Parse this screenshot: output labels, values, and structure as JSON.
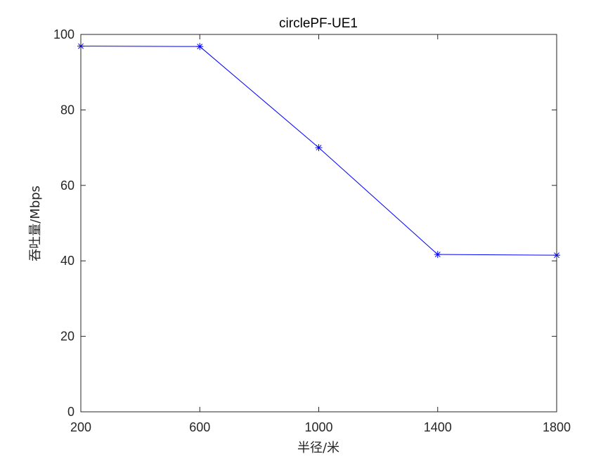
{
  "chart_data": {
    "type": "line",
    "title": "circlePF-UE1",
    "xlabel": "半径/米",
    "ylabel": "吞吐量/Mbps",
    "x": [
      200,
      600,
      1000,
      1400,
      1800
    ],
    "xticks": [
      200,
      600,
      1000,
      1400,
      1800
    ],
    "yticks": [
      0,
      20,
      40,
      60,
      80,
      100
    ],
    "xlim": [
      200,
      1800
    ],
    "ylim": [
      0,
      100
    ],
    "grid": false,
    "series": [
      {
        "values": [
          96.9,
          96.8,
          70.0,
          41.7,
          41.5
        ],
        "color": "#0000ff",
        "marker": "asterisk"
      }
    ]
  }
}
